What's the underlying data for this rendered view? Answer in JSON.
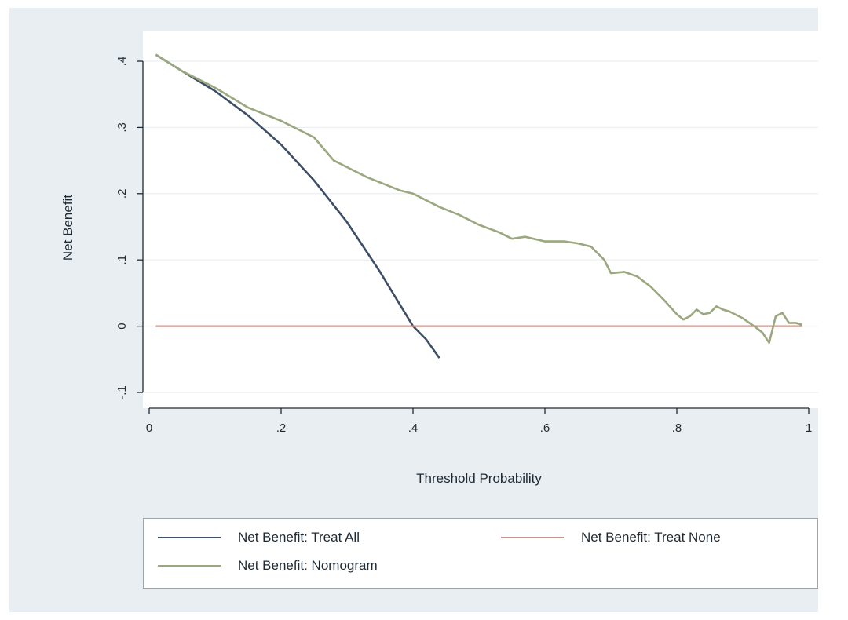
{
  "chart_data": {
    "type": "line",
    "title": "",
    "xlabel": "Threshold Probability",
    "ylabel": "Net Benefit",
    "xlim": [
      0,
      1
    ],
    "ylim": [
      -0.1,
      0.4
    ],
    "xticks": [
      0,
      0.2,
      0.4,
      0.6,
      0.8,
      1
    ],
    "xtick_labels": [
      "0",
      ".2",
      ".4",
      ".6",
      ".8",
      "1"
    ],
    "yticks": [
      -0.1,
      0,
      0.1,
      0.2,
      0.3,
      0.4
    ],
    "ytick_labels": [
      "-.1",
      "0",
      ".1",
      ".2",
      ".3",
      ".4"
    ],
    "grid": true,
    "legend_position": "bottom",
    "series": [
      {
        "name": "Net Benefit: Treat All",
        "color": "#3d4f66",
        "x": [
          0.01,
          0.05,
          0.1,
          0.15,
          0.2,
          0.25,
          0.3,
          0.35,
          0.4,
          0.42,
          0.44
        ],
        "y": [
          0.41,
          0.385,
          0.355,
          0.318,
          0.274,
          0.22,
          0.157,
          0.082,
          0.0,
          -0.02,
          -0.048
        ]
      },
      {
        "name": "Net Benefit: Treat None",
        "color": "#c9968f",
        "x": [
          0.01,
          0.99
        ],
        "y": [
          0,
          0
        ]
      },
      {
        "name": "Net Benefit: Nomogram",
        "color": "#9aa77f",
        "x": [
          0.01,
          0.05,
          0.1,
          0.15,
          0.2,
          0.22,
          0.25,
          0.28,
          0.3,
          0.33,
          0.36,
          0.38,
          0.4,
          0.42,
          0.44,
          0.47,
          0.5,
          0.53,
          0.55,
          0.57,
          0.6,
          0.63,
          0.65,
          0.67,
          0.69,
          0.7,
          0.72,
          0.74,
          0.76,
          0.78,
          0.8,
          0.81,
          0.82,
          0.83,
          0.84,
          0.85,
          0.86,
          0.87,
          0.88,
          0.9,
          0.92,
          0.93,
          0.94,
          0.95,
          0.96,
          0.97,
          0.98,
          0.99
        ],
        "y": [
          0.41,
          0.385,
          0.36,
          0.33,
          0.31,
          0.3,
          0.285,
          0.25,
          0.24,
          0.225,
          0.213,
          0.205,
          0.2,
          0.19,
          0.18,
          0.168,
          0.153,
          0.142,
          0.132,
          0.135,
          0.128,
          0.128,
          0.125,
          0.12,
          0.1,
          0.08,
          0.082,
          0.075,
          0.06,
          0.04,
          0.018,
          0.01,
          0.015,
          0.025,
          0.018,
          0.02,
          0.03,
          0.025,
          0.022,
          0.012,
          -0.002,
          -0.01,
          -0.025,
          0.015,
          0.02,
          0.005,
          0.005,
          0.002
        ]
      }
    ]
  }
}
